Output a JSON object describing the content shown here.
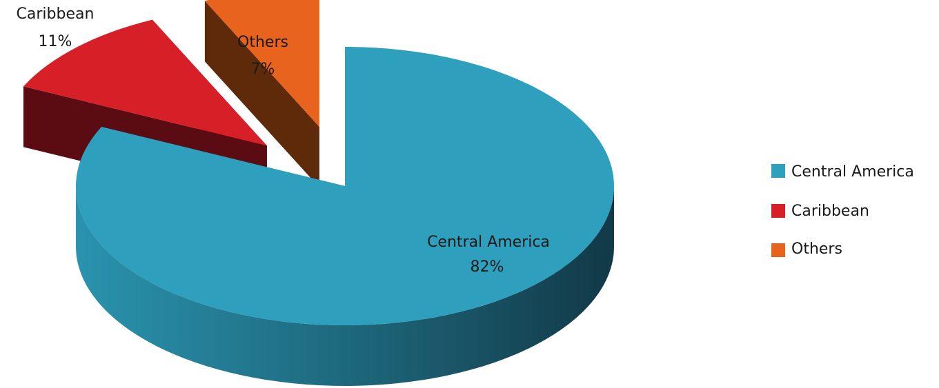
{
  "chart_data": {
    "type": "pie",
    "title": "",
    "series": [
      {
        "name": "Central America",
        "value": 82,
        "label": "82%",
        "color": "#2e9fbd"
      },
      {
        "name": "Caribbean",
        "value": 11,
        "label": "11%",
        "color": "#d61f27"
      },
      {
        "name": "Others",
        "value": 7,
        "label": "7%",
        "color": "#e8641e"
      }
    ],
    "style": "3d-exploded",
    "legend_position": "right"
  }
}
